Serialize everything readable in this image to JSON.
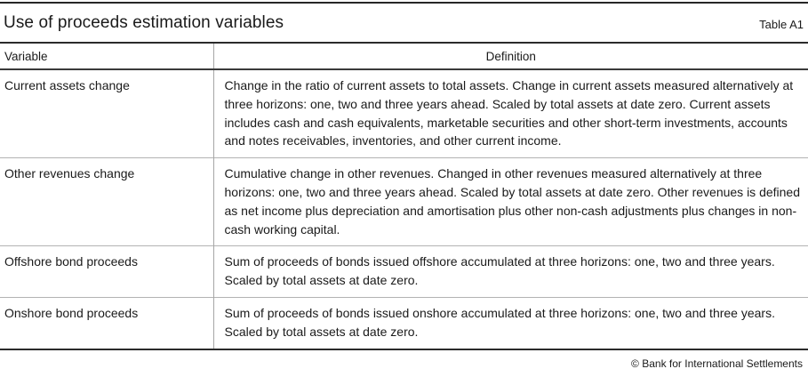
{
  "header": {
    "title": "Use of proceeds estimation variables",
    "table_label": "Table A1"
  },
  "table": {
    "columns": [
      {
        "label": "Variable"
      },
      {
        "label": "Definition"
      }
    ],
    "rows": [
      {
        "variable": "Current assets change",
        "definition": "Change in the ratio of current assets to total assets. Change in current assets measured alternatively at three horizons: one, two and three years ahead. Scaled by total assets at date zero. Current assets includes cash and cash equivalents, marketable securities and other short-term investments, accounts and notes receivables, inventories, and other current income."
      },
      {
        "variable": "Other revenues change",
        "definition": "Cumulative change in other revenues. Changed in other revenues measured alternatively at three horizons: one, two and three years ahead. Scaled by total assets at date zero. Other revenues is defined as net income plus depreciation and amortisation plus other non-cash adjustments plus changes in non-cash working capital."
      },
      {
        "variable": "Offshore bond proceeds",
        "definition": "Sum of proceeds of bonds issued offshore accumulated at three horizons: one, two and three years. Scaled by total assets at date zero."
      },
      {
        "variable": "Onshore bond proceeds",
        "definition": "Sum of proceeds of bonds issued onshore accumulated at three horizons: one, two and three years. Scaled by total assets at date zero."
      }
    ]
  },
  "footer": {
    "copyright": "© Bank for International Settlements"
  },
  "colors": {
    "background": "#ffffff",
    "text": "#1a1a1a",
    "heavy_rule": "#2b2b2b",
    "light_row_separator": "#b3b3b3",
    "column_divider": "#a6a6a6"
  }
}
